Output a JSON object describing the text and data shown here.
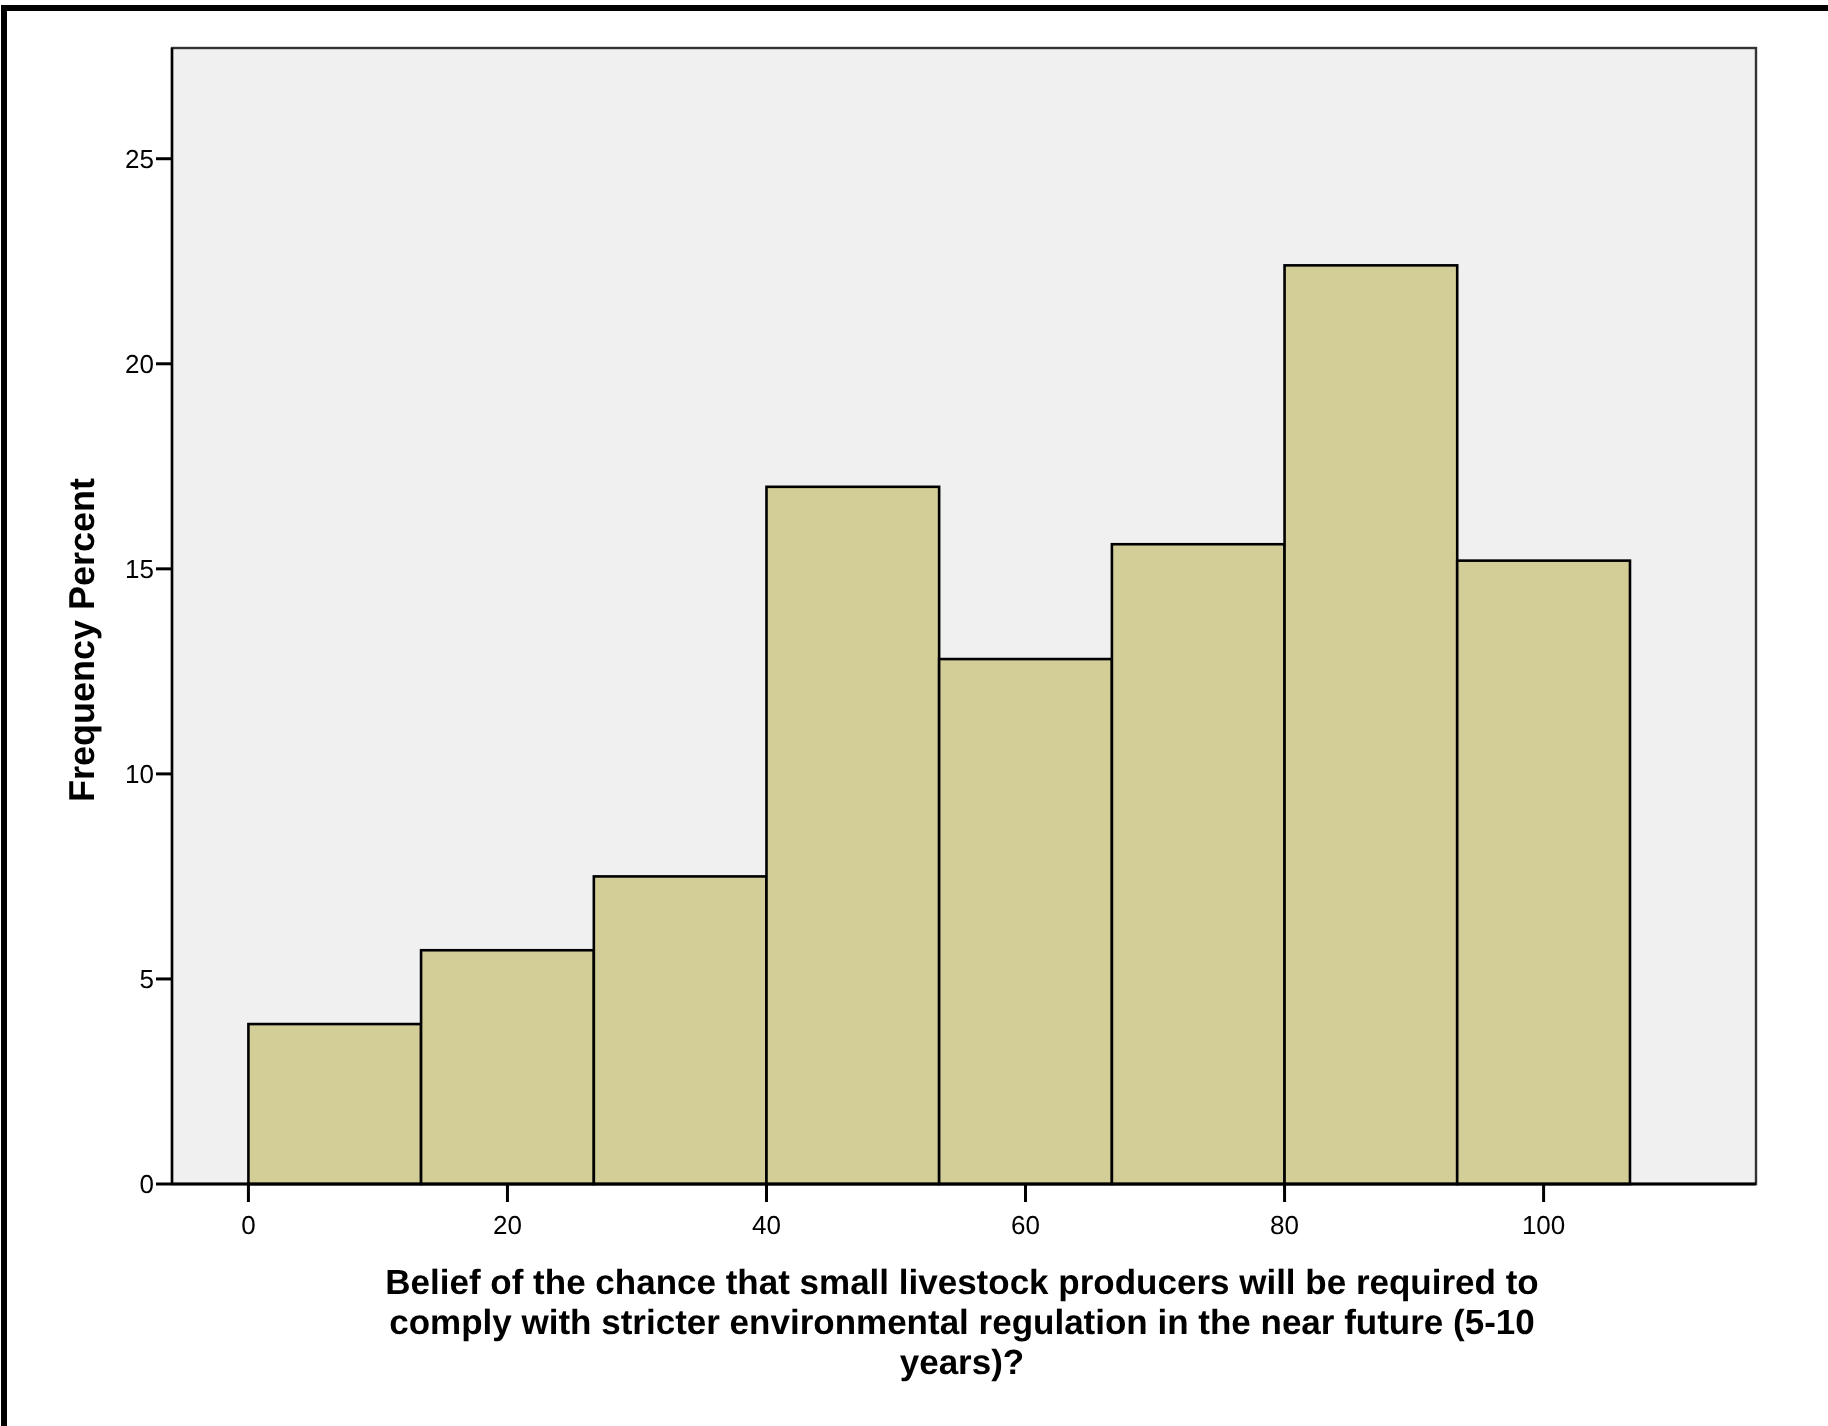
{
  "chart_data": {
    "type": "histogram",
    "xlabel": "Belief of the chance that small livestock producers will be required to comply with stricter environmental regulation in the near future (5-10 years)?",
    "ylabel": "Frequency Percent",
    "bins": [
      0,
      13.33,
      26.67,
      40,
      53.33,
      66.67,
      80,
      93.33,
      106.67
    ],
    "values": [
      3.9,
      5.7,
      7.5,
      17.0,
      12.8,
      15.6,
      22.4,
      15.2
    ],
    "color": "#d3ce98",
    "xlim": [
      -5.9,
      116.4
    ],
    "xticks": [
      0,
      20,
      40,
      60,
      80,
      100
    ],
    "ylim": [
      0,
      27.7
    ],
    "yticks": [
      0,
      5,
      10,
      15,
      20,
      25
    ],
    "grid": false
  }
}
